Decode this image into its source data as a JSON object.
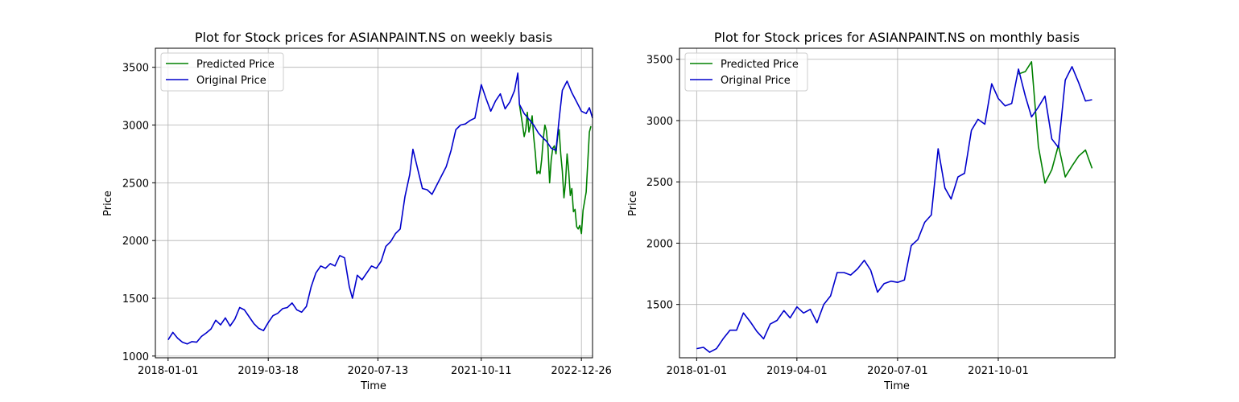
{
  "chart_data": [
    {
      "type": "line",
      "title": "Plot for Stock prices for ASIANPAINT.NS on weekly basis",
      "xlabel": "Time",
      "ylabel": "Price",
      "x_ticks": [
        "2018-01-01",
        "2019-03-18",
        "2020-07-13",
        "2021-10-11",
        "2022-12-26"
      ],
      "y_ticks": [
        1000,
        1500,
        2000,
        2500,
        3000,
        3500
      ],
      "xlim": [
        "2017-11-06",
        "2023-02-13"
      ],
      "ylim": [
        985,
        3665
      ],
      "grid": true,
      "legend_position": "upper-left",
      "series": [
        {
          "name": "Predicted Price",
          "color": "#008000",
          "points": [
            [
              "2022-03-28",
              3180
            ],
            [
              "2022-04-11",
              3000
            ],
            [
              "2022-04-18",
              2900
            ],
            [
              "2022-04-25",
              2960
            ],
            [
              "2022-05-02",
              3110
            ],
            [
              "2022-05-09",
              2940
            ],
            [
              "2022-05-16",
              3000
            ],
            [
              "2022-05-23",
              3080
            ],
            [
              "2022-05-30",
              2900
            ],
            [
              "2022-06-06",
              2760
            ],
            [
              "2022-06-13",
              2580
            ],
            [
              "2022-06-20",
              2600
            ],
            [
              "2022-06-27",
              2580
            ],
            [
              "2022-07-04",
              2700
            ],
            [
              "2022-07-11",
              2880
            ],
            [
              "2022-07-18",
              3000
            ],
            [
              "2022-07-25",
              2950
            ],
            [
              "2022-08-01",
              2800
            ],
            [
              "2022-08-08",
              2500
            ],
            [
              "2022-08-15",
              2700
            ],
            [
              "2022-08-22",
              2800
            ],
            [
              "2022-08-29",
              2820
            ],
            [
              "2022-09-05",
              2750
            ],
            [
              "2022-09-12",
              2900
            ],
            [
              "2022-09-19",
              2960
            ],
            [
              "2022-09-26",
              2750
            ],
            [
              "2022-10-03",
              2600
            ],
            [
              "2022-10-10",
              2370
            ],
            [
              "2022-10-17",
              2500
            ],
            [
              "2022-10-24",
              2750
            ],
            [
              "2022-10-31",
              2600
            ],
            [
              "2022-11-07",
              2390
            ],
            [
              "2022-11-14",
              2450
            ],
            [
              "2022-11-21",
              2250
            ],
            [
              "2022-11-28",
              2270
            ],
            [
              "2022-12-05",
              2120
            ],
            [
              "2022-12-12",
              2100
            ],
            [
              "2022-12-19",
              2130
            ],
            [
              "2022-12-26",
              2060
            ],
            [
              "2023-01-02",
              2260
            ],
            [
              "2023-01-16",
              2420
            ],
            [
              "2023-01-30",
              2940
            ],
            [
              "2023-02-06",
              2990
            ]
          ]
        },
        {
          "name": "Original Price",
          "color": "#0000cc",
          "points": [
            [
              "2018-01-01",
              1140
            ],
            [
              "2018-01-22",
              1205
            ],
            [
              "2018-02-12",
              1155
            ],
            [
              "2018-03-05",
              1120
            ],
            [
              "2018-03-26",
              1105
            ],
            [
              "2018-04-16",
              1125
            ],
            [
              "2018-05-07",
              1120
            ],
            [
              "2018-05-28",
              1170
            ],
            [
              "2018-06-18",
              1200
            ],
            [
              "2018-07-09",
              1235
            ],
            [
              "2018-07-30",
              1310
            ],
            [
              "2018-08-20",
              1270
            ],
            [
              "2018-09-10",
              1330
            ],
            [
              "2018-10-01",
              1260
            ],
            [
              "2018-10-22",
              1320
            ],
            [
              "2018-11-12",
              1420
            ],
            [
              "2018-12-03",
              1400
            ],
            [
              "2018-12-24",
              1340
            ],
            [
              "2019-01-14",
              1280
            ],
            [
              "2019-02-04",
              1240
            ],
            [
              "2019-02-25",
              1220
            ],
            [
              "2019-03-18",
              1290
            ],
            [
              "2019-04-08",
              1350
            ],
            [
              "2019-04-29",
              1370
            ],
            [
              "2019-05-20",
              1410
            ],
            [
              "2019-06-10",
              1420
            ],
            [
              "2019-07-01",
              1460
            ],
            [
              "2019-07-22",
              1400
            ],
            [
              "2019-08-12",
              1380
            ],
            [
              "2019-09-02",
              1430
            ],
            [
              "2019-09-23",
              1600
            ],
            [
              "2019-10-14",
              1720
            ],
            [
              "2019-11-04",
              1780
            ],
            [
              "2019-11-25",
              1760
            ],
            [
              "2019-12-16",
              1800
            ],
            [
              "2020-01-06",
              1780
            ],
            [
              "2020-01-27",
              1870
            ],
            [
              "2020-02-17",
              1850
            ],
            [
              "2020-03-09",
              1600
            ],
            [
              "2020-03-23",
              1500
            ],
            [
              "2020-04-13",
              1700
            ],
            [
              "2020-05-04",
              1660
            ],
            [
              "2020-05-25",
              1720
            ],
            [
              "2020-06-15",
              1780
            ],
            [
              "2020-07-06",
              1760
            ],
            [
              "2020-07-27",
              1820
            ],
            [
              "2020-08-17",
              1950
            ],
            [
              "2020-09-07",
              1990
            ],
            [
              "2020-09-28",
              2060
            ],
            [
              "2020-10-19",
              2100
            ],
            [
              "2020-11-09",
              2380
            ],
            [
              "2020-11-30",
              2570
            ],
            [
              "2020-12-14",
              2790
            ],
            [
              "2021-01-04",
              2620
            ],
            [
              "2021-01-25",
              2450
            ],
            [
              "2021-02-15",
              2440
            ],
            [
              "2021-03-08",
              2400
            ],
            [
              "2021-03-29",
              2480
            ],
            [
              "2021-04-19",
              2560
            ],
            [
              "2021-05-10",
              2640
            ],
            [
              "2021-05-31",
              2780
            ],
            [
              "2021-06-21",
              2960
            ],
            [
              "2021-07-12",
              3000
            ],
            [
              "2021-08-02",
              3010
            ],
            [
              "2021-08-23",
              3040
            ],
            [
              "2021-09-13",
              3060
            ],
            [
              "2021-09-27",
              3200
            ],
            [
              "2021-10-11",
              3350
            ],
            [
              "2021-11-01",
              3230
            ],
            [
              "2021-11-22",
              3120
            ],
            [
              "2021-12-13",
              3210
            ],
            [
              "2022-01-03",
              3270
            ],
            [
              "2022-01-24",
              3140
            ],
            [
              "2022-02-14",
              3200
            ],
            [
              "2022-03-07",
              3300
            ],
            [
              "2022-03-21",
              3450
            ],
            [
              "2022-03-28",
              3180
            ],
            [
              "2022-04-18",
              3100
            ],
            [
              "2022-05-09",
              3050
            ],
            [
              "2022-05-30",
              3000
            ],
            [
              "2022-06-20",
              2930
            ],
            [
              "2022-07-04",
              2900
            ],
            [
              "2022-07-25",
              2860
            ],
            [
              "2022-08-15",
              2800
            ],
            [
              "2022-09-05",
              2780
            ],
            [
              "2022-09-19",
              3050
            ],
            [
              "2022-10-03",
              3300
            ],
            [
              "2022-10-24",
              3380
            ],
            [
              "2022-11-14",
              3280
            ],
            [
              "2022-12-05",
              3200
            ],
            [
              "2022-12-26",
              3120
            ],
            [
              "2023-01-16",
              3100
            ],
            [
              "2023-01-30",
              3150
            ],
            [
              "2023-02-13",
              3060
            ]
          ]
        }
      ]
    },
    {
      "type": "line",
      "title": "Plot for Stock prices for ASIANPAINT.NS on monthly basis",
      "xlabel": "Time",
      "ylabel": "Price",
      "x_ticks": [
        "2018-01-01",
        "2019-04-01",
        "2020-07-01",
        "2021-10-01"
      ],
      "y_ticks": [
        1500,
        2000,
        2500,
        3000,
        3500
      ],
      "xlim": [
        "2017-10-15",
        "2023-03-15"
      ],
      "ylim": [
        1065,
        3590
      ],
      "grid": true,
      "legend_position": "upper-left",
      "series": [
        {
          "name": "Predicted Price",
          "color": "#008000",
          "points": [
            [
              "2022-01-01",
              3380
            ],
            [
              "2022-02-01",
              3400
            ],
            [
              "2022-03-01",
              3480
            ],
            [
              "2022-04-01",
              2790
            ],
            [
              "2022-05-01",
              2490
            ],
            [
              "2022-06-01",
              2600
            ],
            [
              "2022-07-01",
              2800
            ],
            [
              "2022-08-01",
              2540
            ],
            [
              "2022-09-01",
              2630
            ],
            [
              "2022-10-01",
              2710
            ],
            [
              "2022-11-01",
              2760
            ],
            [
              "2022-12-01",
              2610
            ]
          ]
        },
        {
          "name": "Original Price",
          "color": "#0000cc",
          "points": [
            [
              "2018-01-01",
              1140
            ],
            [
              "2018-02-01",
              1150
            ],
            [
              "2018-03-01",
              1110
            ],
            [
              "2018-04-01",
              1140
            ],
            [
              "2018-05-01",
              1220
            ],
            [
              "2018-06-01",
              1290
            ],
            [
              "2018-07-01",
              1290
            ],
            [
              "2018-08-01",
              1430
            ],
            [
              "2018-09-01",
              1360
            ],
            [
              "2018-10-01",
              1280
            ],
            [
              "2018-11-01",
              1220
            ],
            [
              "2018-12-01",
              1340
            ],
            [
              "2019-01-01",
              1370
            ],
            [
              "2019-02-01",
              1450
            ],
            [
              "2019-03-01",
              1390
            ],
            [
              "2019-04-01",
              1480
            ],
            [
              "2019-05-01",
              1430
            ],
            [
              "2019-06-01",
              1460
            ],
            [
              "2019-07-01",
              1350
            ],
            [
              "2019-08-01",
              1500
            ],
            [
              "2019-09-01",
              1570
            ],
            [
              "2019-10-01",
              1760
            ],
            [
              "2019-11-01",
              1760
            ],
            [
              "2019-12-01",
              1740
            ],
            [
              "2020-01-01",
              1790
            ],
            [
              "2020-02-01",
              1860
            ],
            [
              "2020-03-01",
              1780
            ],
            [
              "2020-04-01",
              1600
            ],
            [
              "2020-05-01",
              1670
            ],
            [
              "2020-06-01",
              1690
            ],
            [
              "2020-07-01",
              1680
            ],
            [
              "2020-08-01",
              1700
            ],
            [
              "2020-09-01",
              1980
            ],
            [
              "2020-10-01",
              2030
            ],
            [
              "2020-11-01",
              2170
            ],
            [
              "2020-12-01",
              2230
            ],
            [
              "2021-01-01",
              2770
            ],
            [
              "2021-02-01",
              2450
            ],
            [
              "2021-03-01",
              2360
            ],
            [
              "2021-04-01",
              2540
            ],
            [
              "2021-05-01",
              2570
            ],
            [
              "2021-06-01",
              2920
            ],
            [
              "2021-07-01",
              3010
            ],
            [
              "2021-08-01",
              2970
            ],
            [
              "2021-09-01",
              3300
            ],
            [
              "2021-10-01",
              3180
            ],
            [
              "2021-11-01",
              3120
            ],
            [
              "2021-12-01",
              3140
            ],
            [
              "2022-01-01",
              3420
            ],
            [
              "2022-02-01",
              3200
            ],
            [
              "2022-03-01",
              3030
            ],
            [
              "2022-04-01",
              3110
            ],
            [
              "2022-05-01",
              3200
            ],
            [
              "2022-06-01",
              2850
            ],
            [
              "2022-07-01",
              2780
            ],
            [
              "2022-08-01",
              3330
            ],
            [
              "2022-09-01",
              3440
            ],
            [
              "2022-10-01",
              3310
            ],
            [
              "2022-11-01",
              3160
            ],
            [
              "2022-12-01",
              3170
            ]
          ]
        }
      ]
    }
  ]
}
